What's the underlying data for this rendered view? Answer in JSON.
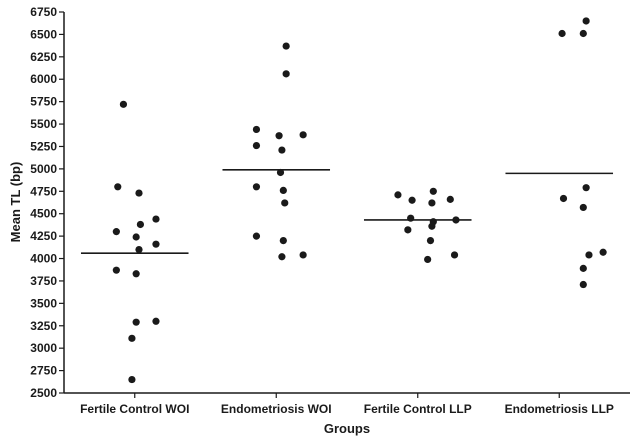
{
  "chart_data": {
    "type": "scatter",
    "title": "",
    "xlabel": "Groups",
    "ylabel": "Mean TL (bp)",
    "ylim": [
      2500,
      6750
    ],
    "yticks": [
      2500,
      2750,
      3000,
      3250,
      3500,
      3750,
      4000,
      4250,
      4500,
      4750,
      5000,
      5250,
      5500,
      5750,
      6000,
      6250,
      6500,
      6750
    ],
    "categories": [
      "Fertile Control WOI",
      "Endometriosis WOI",
      "Fertile Control LLP",
      "Endometriosis LLP"
    ],
    "grid": false,
    "legend": "none",
    "series": [
      {
        "points": [
          {
            "dx": -0.08,
            "y": 5720
          },
          {
            "dx": -0.12,
            "y": 4800
          },
          {
            "dx": 0.03,
            "y": 4730
          },
          {
            "dx": 0.15,
            "y": 4440
          },
          {
            "dx": 0.04,
            "y": 4380
          },
          {
            "dx": -0.13,
            "y": 4300
          },
          {
            "dx": 0.01,
            "y": 4240
          },
          {
            "dx": 0.15,
            "y": 4160
          },
          {
            "dx": 0.03,
            "y": 4100
          },
          {
            "dx": -0.13,
            "y": 3870
          },
          {
            "dx": 0.01,
            "y": 3830
          },
          {
            "dx": 0.01,
            "y": 3290
          },
          {
            "dx": 0.15,
            "y": 3300
          },
          {
            "dx": -0.02,
            "y": 3110
          },
          {
            "dx": -0.02,
            "y": 2650
          }
        ],
        "mean": 4060
      },
      {
        "points": [
          {
            "dx": 0.07,
            "y": 6370
          },
          {
            "dx": 0.07,
            "y": 6060
          },
          {
            "dx": -0.14,
            "y": 5440
          },
          {
            "dx": 0.02,
            "y": 5370
          },
          {
            "dx": 0.19,
            "y": 5380
          },
          {
            "dx": -0.14,
            "y": 5260
          },
          {
            "dx": 0.04,
            "y": 5210
          },
          {
            "dx": 0.03,
            "y": 4960
          },
          {
            "dx": -0.14,
            "y": 4800
          },
          {
            "dx": 0.05,
            "y": 4760
          },
          {
            "dx": 0.06,
            "y": 4620
          },
          {
            "dx": -0.14,
            "y": 4250
          },
          {
            "dx": 0.05,
            "y": 4200
          },
          {
            "dx": 0.04,
            "y": 4020
          },
          {
            "dx": 0.19,
            "y": 4040
          }
        ],
        "mean": 4990
      },
      {
        "points": [
          {
            "dx": -0.14,
            "y": 4710
          },
          {
            "dx": 0.11,
            "y": 4750
          },
          {
            "dx": -0.04,
            "y": 4650
          },
          {
            "dx": 0.1,
            "y": 4620
          },
          {
            "dx": 0.23,
            "y": 4660
          },
          {
            "dx": -0.05,
            "y": 4450
          },
          {
            "dx": 0.11,
            "y": 4410
          },
          {
            "dx": 0.27,
            "y": 4430
          },
          {
            "dx": -0.07,
            "y": 4320
          },
          {
            "dx": 0.1,
            "y": 4360
          },
          {
            "dx": 0.09,
            "y": 4200
          },
          {
            "dx": 0.26,
            "y": 4040
          },
          {
            "dx": 0.07,
            "y": 3990
          }
        ],
        "mean": 4430
      },
      {
        "points": [
          {
            "dx": 0.19,
            "y": 6650
          },
          {
            "dx": 0.02,
            "y": 6510
          },
          {
            "dx": 0.17,
            "y": 6510
          },
          {
            "dx": 0.19,
            "y": 4790
          },
          {
            "dx": 0.03,
            "y": 4670
          },
          {
            "dx": 0.17,
            "y": 4570
          },
          {
            "dx": 0.21,
            "y": 4040
          },
          {
            "dx": 0.31,
            "y": 4070
          },
          {
            "dx": 0.17,
            "y": 3890
          },
          {
            "dx": 0.17,
            "y": 3710
          }
        ],
        "mean": 4950
      }
    ]
  }
}
